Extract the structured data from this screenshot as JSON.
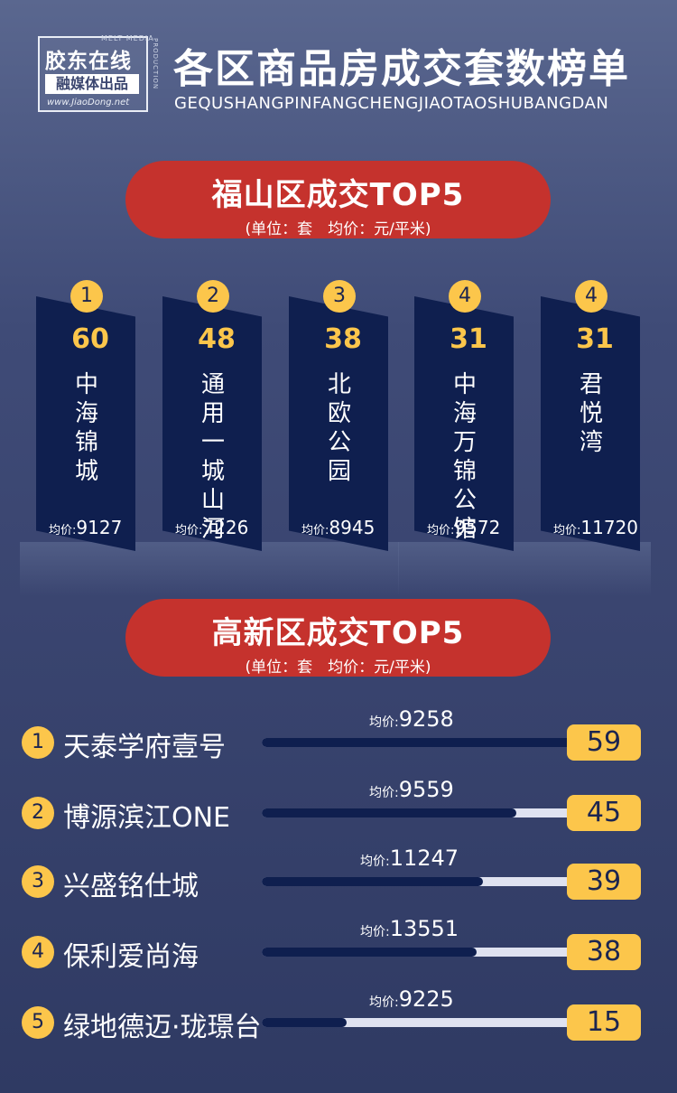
{
  "header": {
    "logo_line1": "胶东在线",
    "logo_line2": "融媒体出品",
    "logo_url": "www.JiaoDong.net",
    "logo_top": "MELT MEDIA",
    "logo_side": "PRODUCTION",
    "title": "各区商品房成交套数榜单",
    "subtitle": "GEQUSHANGPINFANGCHENGJIAOTAOSHUBANGDAN"
  },
  "section1": {
    "title": "福山区成交TOP5",
    "unit": "(单位：套　均价：元/平米)"
  },
  "section2": {
    "title": "高新区成交TOP5",
    "unit": "(单位：套　均价：元/平米)"
  },
  "price_label": "均价:",
  "colors": {
    "accent_red": "#c5322d",
    "accent_yellow": "#fcc64b",
    "bar_navy": "#0f1f4f",
    "track_light": "#dfe2f0"
  },
  "chart_data": [
    {
      "type": "bar",
      "title": "福山区成交TOP5",
      "categories": [
        "中海锦城",
        "通用一城山河",
        "北欧公园",
        "中海万锦公馆",
        "君悦湾"
      ],
      "ranks": [
        "1",
        "2",
        "3",
        "4",
        "4"
      ],
      "values": [
        60,
        48,
        38,
        31,
        31
      ],
      "avg_prices": [
        9127,
        7226,
        8945,
        9572,
        11720
      ]
    },
    {
      "type": "bar",
      "title": "高新区成交TOP5",
      "categories": [
        "天泰学府壹号",
        "博源滨江ONE",
        "兴盛铭仕城",
        "保利爱尚海",
        "绿地德迈·珑璟台"
      ],
      "ranks": [
        "1",
        "2",
        "3",
        "4",
        "5"
      ],
      "values": [
        59,
        45,
        39,
        38,
        15
      ],
      "avg_prices": [
        9258,
        9559,
        11247,
        13551,
        9225
      ],
      "xlim": [
        0,
        59
      ]
    }
  ]
}
